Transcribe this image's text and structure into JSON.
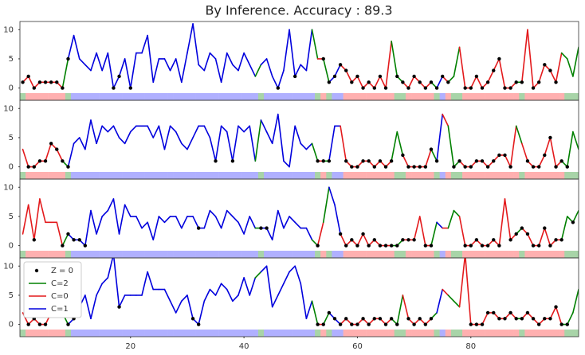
{
  "chart_data": {
    "type": "line",
    "title": "By Inference. Accuracy : 89.3",
    "x": [
      1,
      2,
      3,
      4,
      5,
      6,
      7,
      8,
      9,
      10,
      11,
      12,
      13,
      14,
      15,
      16,
      17,
      18,
      19,
      20,
      21,
      22,
      23,
      24,
      25,
      26,
      27,
      28,
      29,
      30,
      31,
      32,
      33,
      34,
      35,
      36,
      37,
      38,
      39,
      40,
      41,
      42,
      43,
      44,
      45,
      46,
      47,
      48,
      49,
      50,
      51,
      52,
      53,
      54,
      55,
      56,
      57,
      58,
      59,
      60,
      61,
      62,
      63,
      64,
      65,
      66,
      67,
      68,
      69,
      70,
      71,
      72,
      73,
      74,
      75,
      76,
      77,
      78,
      79,
      80,
      81,
      82,
      83,
      84,
      85,
      86,
      87,
      88,
      89,
      90,
      91,
      92,
      93,
      94,
      95,
      96,
      97,
      98,
      99
    ],
    "xlim": [
      0.5,
      99
    ],
    "xticks": [
      20,
      40,
      60,
      80
    ],
    "ylim": [
      -2.1,
      11.4
    ],
    "yticks": [
      0,
      5,
      10
    ],
    "states": [
      2,
      0,
      0,
      0,
      0,
      0,
      0,
      0,
      2,
      1,
      1,
      1,
      1,
      1,
      1,
      1,
      1,
      1,
      1,
      1,
      1,
      1,
      1,
      1,
      1,
      1,
      1,
      1,
      1,
      1,
      1,
      1,
      1,
      1,
      1,
      1,
      1,
      1,
      1,
      1,
      1,
      1,
      2,
      1,
      1,
      1,
      1,
      1,
      1,
      1,
      1,
      1,
      2,
      0,
      2,
      1,
      1,
      0,
      0,
      0,
      0,
      0,
      0,
      0,
      0,
      0,
      2,
      2,
      0,
      0,
      0,
      0,
      0,
      2,
      1,
      0,
      2,
      2,
      0,
      0,
      0,
      0,
      0,
      0,
      0,
      0,
      0,
      0,
      2,
      0,
      0,
      0,
      0,
      0,
      0,
      0,
      2,
      2,
      2
    ],
    "state_colors": {
      "0": "#e31a1c",
      "1": "#0000dd",
      "2": "#008000"
    },
    "band_colors": {
      "0": "#ffb0b0",
      "1": "#b0b0ff",
      "2": "#a8d4a8"
    },
    "zero_marker": {
      "name": "Z = 0",
      "color": "#000000"
    },
    "series": [
      {
        "name": "C=2",
        "state": 2
      },
      {
        "name": "C=0",
        "state": 0
      },
      {
        "name": "C=1",
        "state": 1
      }
    ],
    "legend": "upper left",
    "panels": [
      {
        "values": [
          1,
          2,
          0,
          1,
          1,
          1,
          1,
          0,
          5,
          9,
          5,
          4,
          3,
          6,
          3,
          6,
          0,
          2,
          5,
          0,
          6,
          6,
          9,
          1,
          5,
          5,
          3,
          5,
          1,
          6,
          11,
          4,
          3,
          6,
          5,
          1,
          6,
          4,
          3,
          6,
          4,
          2,
          4,
          5,
          2,
          0,
          3,
          10,
          2,
          4,
          3,
          10,
          5,
          5,
          1,
          2,
          4,
          3,
          1,
          2,
          0,
          1,
          0,
          2,
          0,
          8,
          2,
          1,
          0,
          2,
          1,
          0,
          1,
          0,
          2,
          1,
          2,
          7,
          0,
          0,
          2,
          0,
          1,
          3,
          5,
          0,
          0,
          1,
          1,
          10,
          0,
          1,
          4,
          3,
          1,
          6,
          5,
          2,
          7
        ],
        "z": [
          1,
          1,
          1,
          1,
          1,
          1,
          1,
          1,
          1,
          0,
          0,
          0,
          0,
          0,
          0,
          0,
          1,
          1,
          0,
          1,
          0,
          0,
          0,
          0,
          0,
          0,
          0,
          0,
          0,
          0,
          0,
          0,
          0,
          0,
          0,
          0,
          0,
          0,
          0,
          0,
          0,
          0,
          0,
          0,
          0,
          1,
          0,
          0,
          1,
          0,
          0,
          0,
          0,
          1,
          1,
          1,
          1,
          1,
          1,
          1,
          1,
          1,
          1,
          1,
          1,
          0,
          1,
          1,
          1,
          1,
          1,
          1,
          1,
          1,
          1,
          1,
          0,
          0,
          1,
          1,
          1,
          1,
          1,
          1,
          1,
          1,
          1,
          1,
          1,
          0,
          1,
          1,
          1,
          1,
          1,
          0,
          0,
          0,
          0
        ]
      },
      {
        "values": [
          3,
          0,
          0,
          1,
          1,
          4,
          3,
          1,
          0,
          4,
          5,
          3,
          8,
          4,
          7,
          6,
          7,
          5,
          4,
          6,
          7,
          7,
          7,
          5,
          7,
          3,
          7,
          6,
          4,
          3,
          5,
          7,
          7,
          5,
          1,
          7,
          6,
          1,
          7,
          6,
          7,
          1,
          8,
          6,
          4,
          9,
          1,
          0,
          7,
          4,
          3,
          4,
          1,
          1,
          1,
          7,
          7,
          1,
          0,
          0,
          1,
          1,
          0,
          1,
          0,
          1,
          6,
          2,
          0,
          0,
          0,
          0,
          3,
          1,
          9,
          7,
          0,
          1,
          0,
          0,
          1,
          1,
          0,
          1,
          2,
          2,
          0,
          7,
          4,
          1,
          0,
          0,
          2,
          5,
          0,
          1,
          0,
          6,
          3
        ],
        "z": [
          0,
          1,
          1,
          1,
          1,
          1,
          1,
          1,
          1,
          0,
          0,
          0,
          0,
          0,
          0,
          0,
          0,
          0,
          0,
          0,
          0,
          0,
          0,
          0,
          0,
          0,
          0,
          0,
          0,
          0,
          0,
          0,
          0,
          0,
          1,
          0,
          0,
          1,
          0,
          0,
          0,
          0,
          0,
          0,
          0,
          0,
          0,
          0,
          0,
          0,
          0,
          0,
          1,
          1,
          1,
          0,
          0,
          1,
          1,
          1,
          1,
          1,
          1,
          1,
          1,
          1,
          0,
          1,
          1,
          1,
          1,
          1,
          1,
          1,
          0,
          0,
          1,
          1,
          1,
          1,
          1,
          1,
          1,
          1,
          1,
          1,
          1,
          0,
          0,
          1,
          1,
          1,
          1,
          1,
          1,
          1,
          1,
          0,
          0
        ]
      },
      {
        "values": [
          2,
          7,
          1,
          8,
          4,
          4,
          4,
          0,
          2,
          1,
          1,
          0,
          6,
          2,
          5,
          6,
          8,
          2,
          7,
          5,
          5,
          3,
          4,
          1,
          5,
          4,
          5,
          5,
          3,
          5,
          5,
          3,
          3,
          6,
          5,
          3,
          6,
          5,
          4,
          2,
          5,
          3,
          3,
          3,
          1,
          6,
          3,
          5,
          4,
          3,
          3,
          1,
          0,
          4,
          10,
          7,
          2,
          0,
          1,
          0,
          2,
          0,
          1,
          0,
          0,
          0,
          0,
          1,
          1,
          1,
          5,
          0,
          0,
          4,
          3,
          3,
          6,
          5,
          0,
          0,
          1,
          0,
          0,
          1,
          0,
          8,
          1,
          2,
          3,
          2,
          0,
          0,
          3,
          0,
          1,
          1,
          5,
          4,
          6
        ],
        "z": [
          0,
          0,
          1,
          0,
          0,
          0,
          0,
          1,
          1,
          1,
          1,
          1,
          0,
          0,
          0,
          0,
          0,
          0,
          0,
          0,
          0,
          0,
          0,
          0,
          0,
          0,
          0,
          0,
          0,
          0,
          0,
          1,
          0,
          0,
          0,
          0,
          0,
          0,
          0,
          0,
          0,
          0,
          1,
          1,
          0,
          0,
          0,
          0,
          0,
          0,
          0,
          0,
          1,
          0,
          0,
          0,
          1,
          1,
          1,
          1,
          1,
          1,
          1,
          1,
          1,
          1,
          1,
          1,
          1,
          1,
          0,
          1,
          1,
          0,
          0,
          0,
          0,
          0,
          1,
          1,
          1,
          1,
          1,
          1,
          1,
          0,
          1,
          1,
          1,
          1,
          1,
          1,
          1,
          1,
          1,
          1,
          0,
          1,
          0
        ]
      },
      {
        "values": [
          2,
          0,
          1,
          0,
          0,
          2,
          3,
          2,
          0,
          1,
          3,
          5,
          1,
          5,
          7,
          8,
          12,
          3,
          5,
          5,
          5,
          5,
          9,
          6,
          6,
          6,
          4,
          2,
          4,
          5,
          1,
          0,
          4,
          6,
          5,
          7,
          6,
          4,
          5,
          8,
          5,
          8,
          9,
          10,
          3,
          5,
          7,
          9,
          10,
          7,
          1,
          4,
          0,
          0,
          2,
          1,
          0,
          1,
          0,
          0,
          1,
          0,
          1,
          1,
          0,
          1,
          0,
          5,
          1,
          0,
          1,
          0,
          1,
          2,
          6,
          5,
          4,
          3,
          12,
          0,
          0,
          0,
          2,
          2,
          1,
          1,
          2,
          1,
          1,
          2,
          1,
          0,
          1,
          1,
          3,
          0,
          0,
          2,
          6
        ],
        "z": [
          0,
          1,
          1,
          1,
          1,
          1,
          1,
          1,
          1,
          1,
          0,
          0,
          0,
          0,
          0,
          0,
          0,
          1,
          0,
          0,
          0,
          0,
          0,
          0,
          0,
          0,
          0,
          0,
          0,
          0,
          1,
          1,
          0,
          0,
          0,
          0,
          0,
          0,
          0,
          0,
          0,
          0,
          0,
          0,
          0,
          0,
          0,
          0,
          0,
          0,
          0,
          0,
          1,
          1,
          1,
          1,
          1,
          1,
          1,
          1,
          1,
          1,
          1,
          1,
          1,
          1,
          1,
          0,
          1,
          1,
          1,
          1,
          1,
          0,
          0,
          0,
          0,
          0,
          0,
          1,
          1,
          1,
          1,
          1,
          1,
          1,
          1,
          1,
          1,
          1,
          1,
          1,
          1,
          1,
          1,
          1,
          1,
          0,
          0
        ]
      }
    ]
  }
}
